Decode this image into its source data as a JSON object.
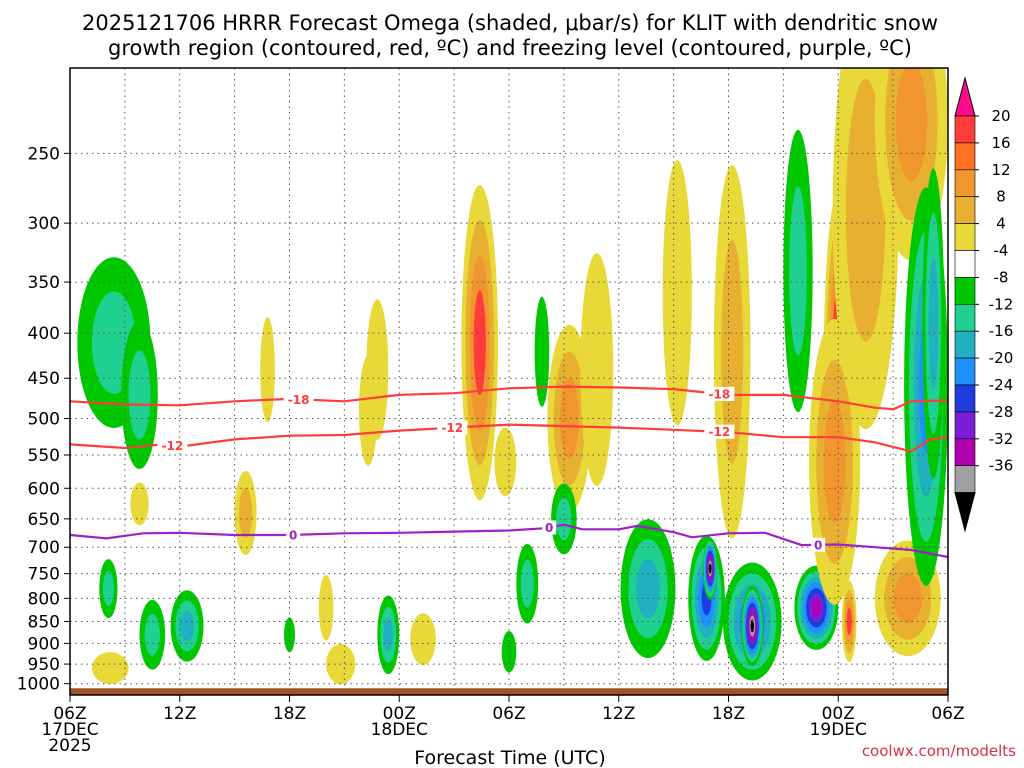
{
  "chart_data": {
    "type": "heatmap",
    "title_line1": "2025121706 HRRR Forecast Omega (shaded, μbar/s) for KLIT with dendritic snow",
    "title_line2": "growth region (contoured, red, ºC) and freezing level (contoured, purple, ºC)",
    "xlabel": "Forecast Time (UTC)",
    "ylabel": "",
    "credit": "coolwx.com/modelts",
    "x_ticks": [
      {
        "hour": 0,
        "label": "06Z",
        "sub": "17DEC",
        "sub2": "2025"
      },
      {
        "hour": 6,
        "label": "12Z",
        "sub": "",
        "sub2": ""
      },
      {
        "hour": 12,
        "label": "18Z",
        "sub": "",
        "sub2": ""
      },
      {
        "hour": 18,
        "label": "00Z",
        "sub": "18DEC",
        "sub2": ""
      },
      {
        "hour": 24,
        "label": "06Z",
        "sub": "",
        "sub2": ""
      },
      {
        "hour": 30,
        "label": "12Z",
        "sub": "",
        "sub2": ""
      },
      {
        "hour": 36,
        "label": "18Z",
        "sub": "",
        "sub2": ""
      },
      {
        "hour": 42,
        "label": "00Z",
        "sub": "19DEC",
        "sub2": ""
      },
      {
        "hour": 48,
        "label": "06Z",
        "sub": "",
        "sub2": ""
      }
    ],
    "x_range_hours": [
      0,
      48
    ],
    "y_ticks_hpa": [
      250,
      300,
      350,
      400,
      450,
      500,
      550,
      600,
      650,
      700,
      750,
      800,
      850,
      900,
      950,
      1000
    ],
    "y_range_hpa": [
      200,
      1030
    ],
    "colorbar": {
      "labels": [
        "20",
        "16",
        "12",
        "8",
        "4",
        "-4",
        "-8",
        "-12",
        "-16",
        "-20",
        "-24",
        "-28",
        "-32",
        "-36"
      ],
      "colors": [
        "#ff0a8c",
        "#ff3c3c",
        "#ff7020",
        "#f0962c",
        "#e8b030",
        "#e8d838",
        "#ffffff",
        "#00c800",
        "#20d090",
        "#20b0c0",
        "#1e90ff",
        "#1e3ce0",
        "#7a1ed8",
        "#b000b0",
        "#a0a0a0",
        "#000000"
      ]
    },
    "dgz_contours": [
      {
        "label": "-18",
        "color": "#ff3c3c",
        "levels_hpa": [
          [
            0,
            478
          ],
          [
            3,
            482
          ],
          [
            6,
            483
          ],
          [
            9,
            478
          ],
          [
            12,
            475
          ],
          [
            15,
            478
          ],
          [
            18,
            470
          ],
          [
            21,
            468
          ],
          [
            24,
            462
          ],
          [
            27,
            460
          ],
          [
            30,
            461
          ],
          [
            33,
            463
          ],
          [
            36,
            470
          ],
          [
            39,
            470
          ],
          [
            42,
            478
          ],
          [
            44,
            486
          ],
          [
            45,
            488
          ],
          [
            46,
            478
          ],
          [
            48,
            477
          ]
        ],
        "label_hours": [
          12.5,
          35.5
        ]
      },
      {
        "label": "-12",
        "color": "#ff3c3c",
        "levels_hpa": [
          [
            0,
            535
          ],
          [
            3,
            540
          ],
          [
            5,
            535
          ],
          [
            6,
            538
          ],
          [
            9,
            528
          ],
          [
            12,
            523
          ],
          [
            15,
            522
          ],
          [
            18,
            516
          ],
          [
            21,
            512
          ],
          [
            24,
            508
          ],
          [
            27,
            510
          ],
          [
            30,
            512
          ],
          [
            33,
            515
          ],
          [
            36,
            518
          ],
          [
            39,
            525
          ],
          [
            42,
            525
          ],
          [
            44,
            532
          ],
          [
            46,
            545
          ],
          [
            47,
            528
          ],
          [
            48,
            525
          ]
        ],
        "label_hours": [
          5.6,
          20.9,
          35.5
        ]
      },
      {
        "label": "0",
        "color": "#a020c8",
        "levels_hpa": [
          [
            0,
            678
          ],
          [
            2,
            684
          ],
          [
            4,
            675
          ],
          [
            6,
            674
          ],
          [
            9,
            678
          ],
          [
            12,
            678
          ],
          [
            15,
            675
          ],
          [
            18,
            674
          ],
          [
            21,
            672
          ],
          [
            24,
            670
          ],
          [
            26,
            666
          ],
          [
            27,
            660
          ],
          [
            28,
            668
          ],
          [
            30,
            668
          ],
          [
            31,
            662
          ],
          [
            33,
            673
          ],
          [
            34,
            682
          ],
          [
            36,
            675
          ],
          [
            38,
            674
          ],
          [
            40,
            696
          ],
          [
            42,
            695
          ],
          [
            44,
            700
          ],
          [
            46,
            705
          ],
          [
            48,
            718
          ]
        ],
        "label_hours": [
          12.2,
          26.2,
          40.9
        ]
      }
    ],
    "omega_features": [
      {
        "hour": 2.4,
        "p": 410,
        "rh": 2.0,
        "rp": 90,
        "value": -10
      },
      {
        "hour": 3.8,
        "p": 470,
        "rh": 1.0,
        "rp": 90,
        "value": -8
      },
      {
        "hour": 2.1,
        "p": 780,
        "rh": 0.5,
        "rp": 60,
        "value": -8
      },
      {
        "hour": 2.2,
        "p": 960,
        "rh": 1.0,
        "rp": 40,
        "value": 6
      },
      {
        "hour": 4.5,
        "p": 880,
        "rh": 0.7,
        "rp": 80,
        "value": -10
      },
      {
        "hour": 6.4,
        "p": 860,
        "rh": 0.9,
        "rp": 80,
        "value": -12
      },
      {
        "hour": 3.8,
        "p": 625,
        "rh": 0.5,
        "rp": 35,
        "value": 6
      },
      {
        "hour": 9.6,
        "p": 640,
        "rh": 0.6,
        "rp": 70,
        "value": 8
      },
      {
        "hour": 10.8,
        "p": 440,
        "rh": 0.4,
        "rp": 60,
        "value": 6
      },
      {
        "hour": 12.0,
        "p": 880,
        "rh": 0.3,
        "rp": 40,
        "value": -6
      },
      {
        "hour": 14.0,
        "p": 820,
        "rh": 0.4,
        "rp": 70,
        "value": 6
      },
      {
        "hour": 14.8,
        "p": 950,
        "rh": 0.8,
        "rp": 50,
        "value": 6
      },
      {
        "hour": 16.3,
        "p": 490,
        "rh": 0.5,
        "rp": 70,
        "value": 6
      },
      {
        "hour": 17.4,
        "p": 880,
        "rh": 0.6,
        "rp": 90,
        "value": -12
      },
      {
        "hour": 16.8,
        "p": 440,
        "rh": 0.6,
        "rp": 80,
        "value": 6
      },
      {
        "hour": 19.3,
        "p": 890,
        "rh": 0.7,
        "rp": 60,
        "value": 6
      },
      {
        "hour": 22.4,
        "p": 410,
        "rh": 1.0,
        "rp": 160,
        "value": 18
      },
      {
        "hour": 23.8,
        "p": 560,
        "rh": 0.6,
        "rp": 50,
        "value": 6
      },
      {
        "hour": 24.0,
        "p": 920,
        "rh": 0.4,
        "rp": 50,
        "value": -6
      },
      {
        "hour": 25.0,
        "p": 770,
        "rh": 0.6,
        "rp": 80,
        "value": -8
      },
      {
        "hour": 25.8,
        "p": 420,
        "rh": 0.4,
        "rp": 60,
        "value": -6
      },
      {
        "hour": 27.3,
        "p": 500,
        "rh": 1.2,
        "rp": 120,
        "value": 12
      },
      {
        "hour": 27.0,
        "p": 650,
        "rh": 0.7,
        "rp": 60,
        "value": -8
      },
      {
        "hour": 28.8,
        "p": 440,
        "rh": 0.9,
        "rp": 130,
        "value": 6
      },
      {
        "hour": 31.6,
        "p": 780,
        "rh": 1.5,
        "rp": 140,
        "value": -12
      },
      {
        "hour": 33.2,
        "p": 360,
        "rh": 0.8,
        "rp": 120,
        "value": 6
      },
      {
        "hour": 34.8,
        "p": 800,
        "rh": 1.0,
        "rp": 130,
        "value": -20
      },
      {
        "hour": 35.0,
        "p": 740,
        "rh": 0.4,
        "rp": 60,
        "value": -36
      },
      {
        "hour": 36.2,
        "p": 420,
        "rh": 1.0,
        "rp": 190,
        "value": 10
      },
      {
        "hour": 36.4,
        "p": 860,
        "rh": 0.5,
        "rp": 80,
        "value": 12
      },
      {
        "hour": 37.3,
        "p": 850,
        "rh": 1.6,
        "rp": 130,
        "value": -20
      },
      {
        "hour": 37.3,
        "p": 860,
        "rh": 0.6,
        "rp": 90,
        "value": -36
      },
      {
        "hour": 39.8,
        "p": 340,
        "rh": 0.8,
        "rp": 120,
        "value": -8
      },
      {
        "hour": 40.8,
        "p": 820,
        "rh": 1.2,
        "rp": 90,
        "value": -28
      },
      {
        "hour": 42.0,
        "p": 440,
        "rh": 0.8,
        "rp": 190,
        "value": 20
      },
      {
        "hour": 41.8,
        "p": 560,
        "rh": 1.4,
        "rp": 200,
        "value": 12
      },
      {
        "hour": 43.5,
        "p": 290,
        "rh": 1.8,
        "rp": 150,
        "value": 10
      },
      {
        "hour": 42.6,
        "p": 850,
        "rh": 0.4,
        "rp": 90,
        "value": 16
      },
      {
        "hour": 46.0,
        "p": 230,
        "rh": 2.0,
        "rp": 80,
        "value": 12
      },
      {
        "hour": 45.8,
        "p": 800,
        "rh": 1.8,
        "rp": 120,
        "value": 14
      },
      {
        "hour": 46.8,
        "p": 460,
        "rh": 1.2,
        "rp": 220,
        "value": -16
      },
      {
        "hour": 47.2,
        "p": 390,
        "rh": 0.6,
        "rp": 150,
        "value": -12
      }
    ]
  }
}
